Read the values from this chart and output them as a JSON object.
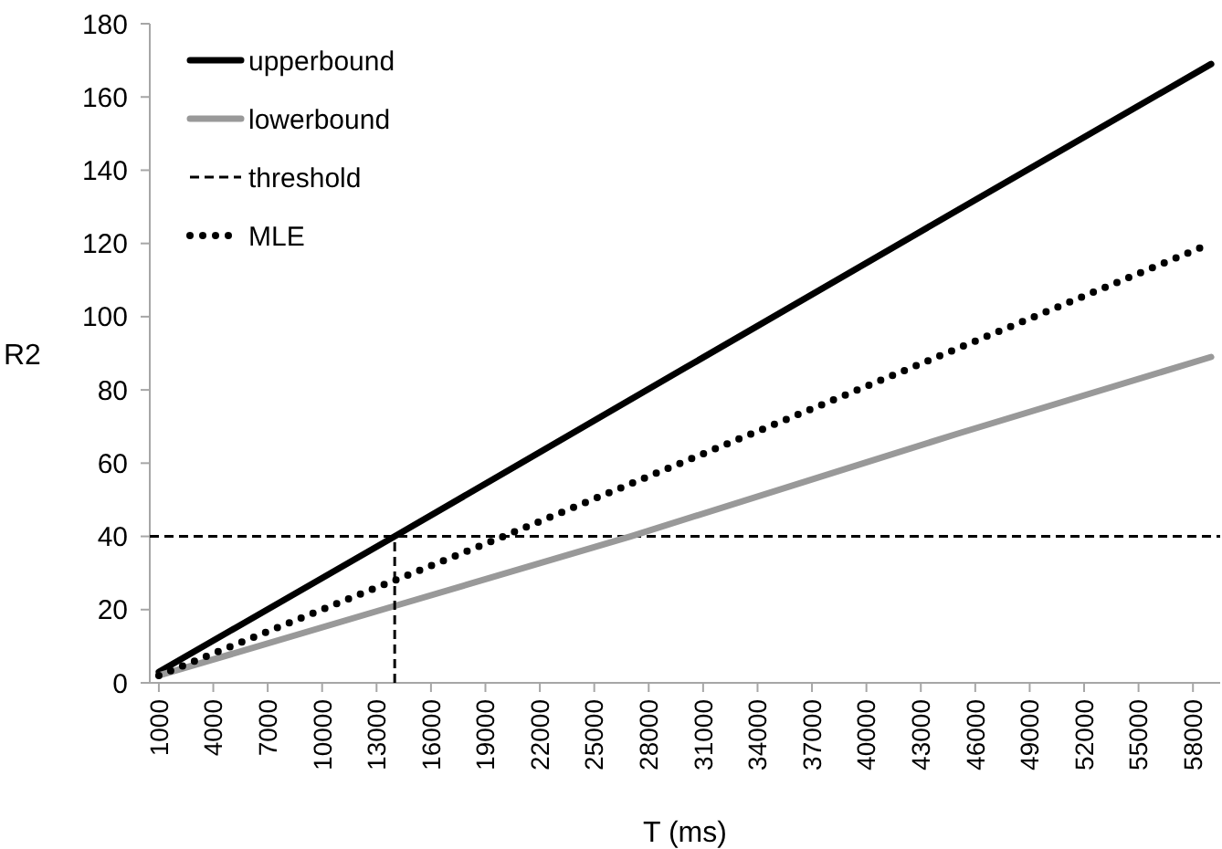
{
  "chart_data": {
    "type": "line",
    "xlabel": "T (ms)",
    "ylabel": "R2",
    "xlim": [
      500,
      59500
    ],
    "xticks": [
      1000,
      4000,
      7000,
      10000,
      13000,
      16000,
      19000,
      22000,
      25000,
      28000,
      31000,
      34000,
      37000,
      40000,
      43000,
      46000,
      49000,
      52000,
      55000,
      58000
    ],
    "ylim": [
      0,
      180
    ],
    "yticks": [
      0,
      20,
      40,
      60,
      80,
      100,
      120,
      140,
      160,
      180
    ],
    "grid": false,
    "legend": "top left",
    "ref_lines": [
      {
        "axis": "y",
        "value": 40,
        "color": "#000000",
        "line_style": "dashed"
      }
    ],
    "series": [
      {
        "name": "upperbound",
        "color": "#000000",
        "line_style": "solid",
        "x": [
          1000,
          14000,
          30000,
          45000,
          59000
        ],
        "values": [
          3,
          40,
          86,
          129,
          169
        ]
      },
      {
        "name": "lowerbound",
        "color": "#999999",
        "line_style": "solid",
        "x": [
          1000,
          14000,
          27000,
          45000,
          59000
        ],
        "values": [
          2,
          21,
          40,
          68,
          89
        ]
      },
      {
        "name": "threshold",
        "color": "#000000",
        "line_style": "dashed",
        "x": [
          14000,
          14000
        ],
        "values": [
          0,
          40
        ]
      },
      {
        "name": "MLE",
        "color": "#000000",
        "line_style": "dotted",
        "x": [
          1000,
          20000,
          40000,
          59000
        ],
        "values": [
          2,
          40,
          81,
          120
        ]
      }
    ]
  }
}
